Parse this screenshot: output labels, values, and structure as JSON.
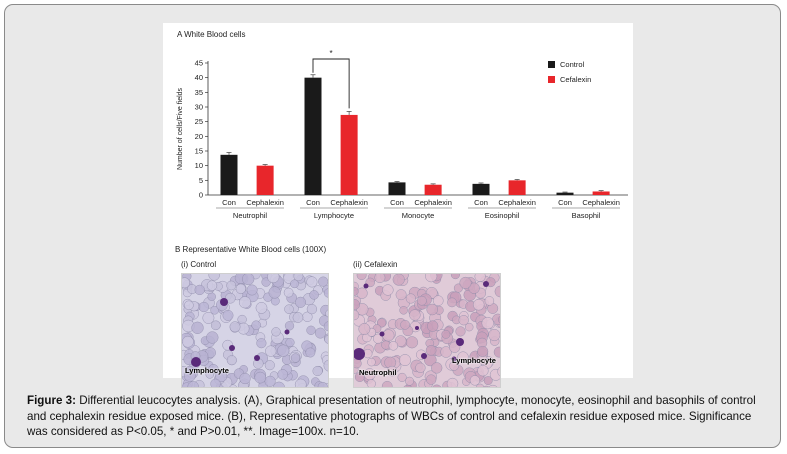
{
  "panel_a_title": "A   White Blood cells",
  "panel_b_title": "B   Representative White Blood cells (100X)",
  "photo_control_title": "(i) Control",
  "photo_cefalexin_title": "(ii)  Cefalexin",
  "photo_labels": {
    "control_lymphocyte": "Lymphocyte",
    "cefalexin_neutrophil": "Neutrophil",
    "cefalexin_lymphocyte": "Lymphocyte"
  },
  "caption": {
    "label": "Figure 3:",
    "text": " Differential leucocytes analysis. (A), Graphical presentation of neutrophil, lymphocyte, monocyte, eosinophil and basophils of control and cephalexin residue exposed mice. (B), Representative photographs of WBCs of control and cefalexin residue exposed mice. Significance was considered as P<0.05, * and P>0.01, **. Image=100x. n=10."
  },
  "colors": {
    "control": "#1a1a1a",
    "cefalexin": "#e8262b",
    "frame_bg": "#e9e9e9"
  },
  "chart_data": {
    "type": "bar",
    "title": "",
    "ylabel": "Number of cells/Five fields",
    "ylim": [
      0,
      45
    ],
    "yticks": [
      0,
      5,
      10,
      15,
      20,
      25,
      30,
      35,
      40,
      45
    ],
    "groups": [
      "Neutrophil",
      "Lymphocyte",
      "Monocyte",
      "Eosinophil",
      "Basophil"
    ],
    "bar_labels": [
      "Con",
      "Cephalexin"
    ],
    "series": [
      {
        "name": "Control",
        "values": [
          13.7,
          40.0,
          4.3,
          3.8,
          0.8
        ],
        "errors": [
          0.8,
          1.0,
          0.3,
          0.3,
          0.2
        ]
      },
      {
        "name": "Cefalexin",
        "values": [
          10.0,
          27.3,
          3.5,
          5.0,
          1.2
        ],
        "errors": [
          0.4,
          1.2,
          0.3,
          0.3,
          0.3
        ]
      }
    ],
    "legend_position": "top-right",
    "significance": {
      "group": "Lymphocyte",
      "label": "*"
    }
  }
}
